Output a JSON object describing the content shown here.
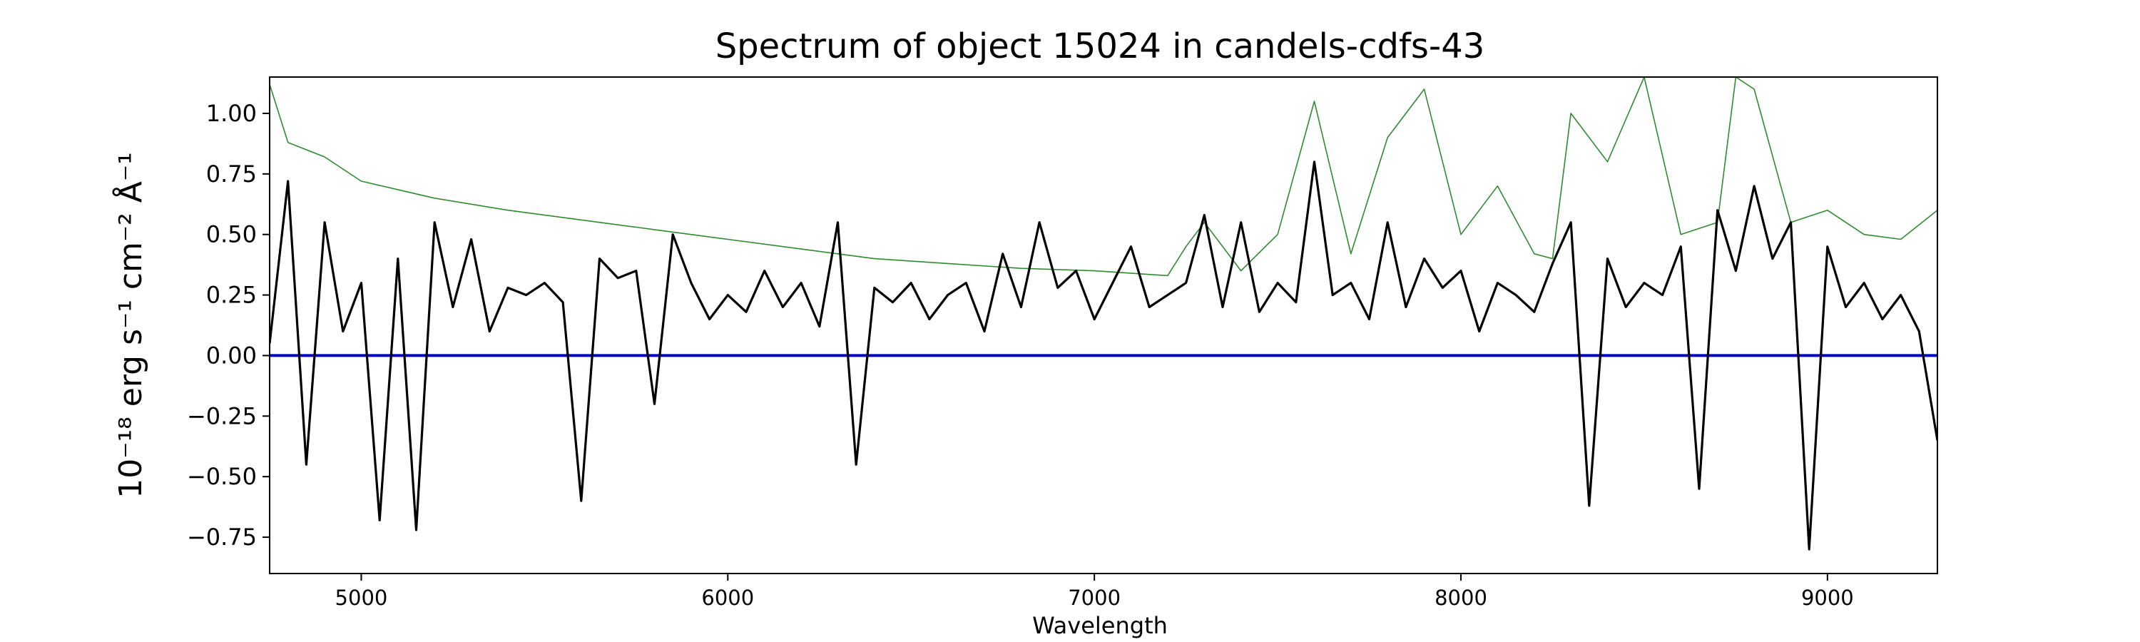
{
  "chart_data": {
    "type": "line",
    "title": "Spectrum of object 15024 in candels-cdfs-43",
    "xlabel": "Wavelength",
    "ylabel": "10⁻¹⁸ erg s⁻¹ cm⁻² Å⁻¹",
    "xlim": [
      4750,
      9300
    ],
    "ylim": [
      -0.9,
      1.15
    ],
    "xticks": [
      5000,
      6000,
      7000,
      8000,
      9000
    ],
    "xtick_labels": [
      "5000",
      "6000",
      "7000",
      "8000",
      "9000"
    ],
    "yticks": [
      -0.75,
      -0.5,
      -0.25,
      0.0,
      0.25,
      0.5,
      0.75,
      1.0
    ],
    "ytick_labels": [
      "−0.75",
      "−0.50",
      "−0.25",
      "0.00",
      "0.25",
      "0.50",
      "0.75",
      "1.00"
    ],
    "grid": false,
    "series": [
      {
        "role": "flux",
        "color": "#000000",
        "x": [
          4750,
          4800,
          4850,
          4900,
          4950,
          5000,
          5050,
          5100,
          5150,
          5200,
          5250,
          5300,
          5350,
          5400,
          5450,
          5500,
          5550,
          5600,
          5650,
          5700,
          5750,
          5800,
          5850,
          5900,
          5950,
          6000,
          6050,
          6100,
          6150,
          6200,
          6250,
          6300,
          6350,
          6400,
          6450,
          6500,
          6550,
          6600,
          6650,
          6700,
          6750,
          6800,
          6850,
          6900,
          6950,
          7000,
          7050,
          7100,
          7150,
          7200,
          7250,
          7300,
          7350,
          7400,
          7450,
          7500,
          7550,
          7600,
          7650,
          7700,
          7750,
          7800,
          7850,
          7900,
          7950,
          8000,
          8050,
          8100,
          8150,
          8200,
          8250,
          8300,
          8350,
          8400,
          8450,
          8500,
          8550,
          8600,
          8650,
          8700,
          8750,
          8800,
          8850,
          8900,
          8950,
          9000,
          9050,
          9100,
          9150,
          9200,
          9250,
          9300
        ],
        "values": [
          0.05,
          0.72,
          -0.45,
          0.55,
          0.1,
          0.3,
          -0.68,
          0.4,
          -0.72,
          0.55,
          0.2,
          0.48,
          0.1,
          0.28,
          0.25,
          0.3,
          0.22,
          -0.6,
          0.4,
          0.32,
          0.35,
          -0.2,
          0.5,
          0.3,
          0.15,
          0.25,
          0.18,
          0.35,
          0.2,
          0.3,
          0.12,
          0.55,
          -0.45,
          0.28,
          0.22,
          0.3,
          0.15,
          0.25,
          0.3,
          0.1,
          0.42,
          0.2,
          0.55,
          0.28,
          0.35,
          0.15,
          0.3,
          0.45,
          0.2,
          0.25,
          0.3,
          0.58,
          0.2,
          0.55,
          0.18,
          0.3,
          0.22,
          0.8,
          0.25,
          0.3,
          0.15,
          0.55,
          0.2,
          0.4,
          0.28,
          0.35,
          0.1,
          0.3,
          0.25,
          0.18,
          0.38,
          0.55,
          -0.62,
          0.4,
          0.2,
          0.3,
          0.25,
          0.45,
          -0.55,
          0.6,
          0.35,
          0.7,
          0.4,
          0.55,
          -0.8,
          0.45,
          0.2,
          0.3,
          0.15,
          0.25,
          0.1,
          -0.35
        ]
      },
      {
        "role": "error",
        "color": "#2e8b2e",
        "x": [
          4750,
          4800,
          4900,
          5000,
          5200,
          5400,
          5600,
          5800,
          6000,
          6200,
          6400,
          6600,
          6800,
          7000,
          7200,
          7250,
          7300,
          7400,
          7500,
          7600,
          7700,
          7800,
          7900,
          8000,
          8100,
          8200,
          8250,
          8300,
          8400,
          8500,
          8600,
          8700,
          8750,
          8800,
          8900,
          9000,
          9100,
          9200,
          9300
        ],
        "values": [
          1.12,
          0.88,
          0.82,
          0.72,
          0.65,
          0.6,
          0.56,
          0.52,
          0.48,
          0.44,
          0.4,
          0.38,
          0.36,
          0.35,
          0.33,
          0.45,
          0.55,
          0.35,
          0.5,
          1.05,
          0.42,
          0.9,
          1.1,
          0.5,
          0.7,
          0.42,
          0.4,
          1.0,
          0.8,
          1.15,
          0.5,
          0.55,
          1.15,
          1.1,
          0.55,
          0.6,
          0.5,
          0.48,
          0.6
        ]
      },
      {
        "role": "zero",
        "color": "#0000cc",
        "x": [
          4750,
          9300
        ],
        "values": [
          0.0,
          0.0
        ]
      }
    ]
  }
}
